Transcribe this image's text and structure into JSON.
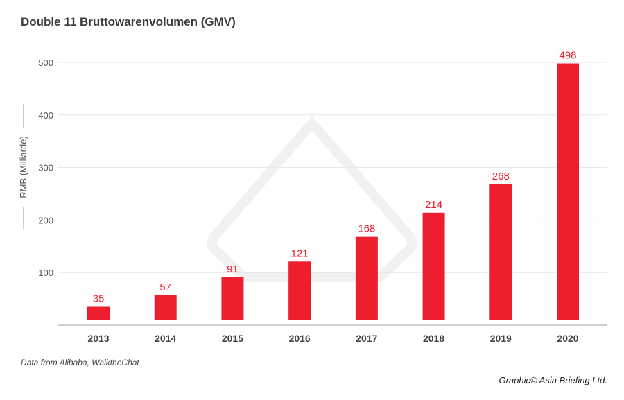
{
  "chart_data": {
    "type": "bar",
    "title": "Double 11 Bruttowarenvolumen (GMV)",
    "ylabel": "RMB (Milliarde)",
    "xlabel": "",
    "categories": [
      "2013",
      "2014",
      "2015",
      "2016",
      "2017",
      "2018",
      "2019",
      "2020"
    ],
    "values": [
      35,
      57,
      91,
      121,
      168,
      214,
      268,
      498
    ],
    "data_labels": [
      "35",
      "57",
      "91",
      "121",
      "168",
      "214",
      "268",
      "498"
    ],
    "yticks": [
      100,
      200,
      300,
      400,
      500
    ],
    "ytick_labels": [
      "100",
      "200",
      "300",
      "400",
      "500"
    ],
    "ylim": [
      0,
      500
    ],
    "grid": true,
    "bar_color": "#ed1f2e",
    "label_color": "#ed1f2e"
  },
  "footer": {
    "source": "Data from Alibaba, WalktheChat",
    "credit": "Graphic© Asia Briefing Ltd."
  }
}
